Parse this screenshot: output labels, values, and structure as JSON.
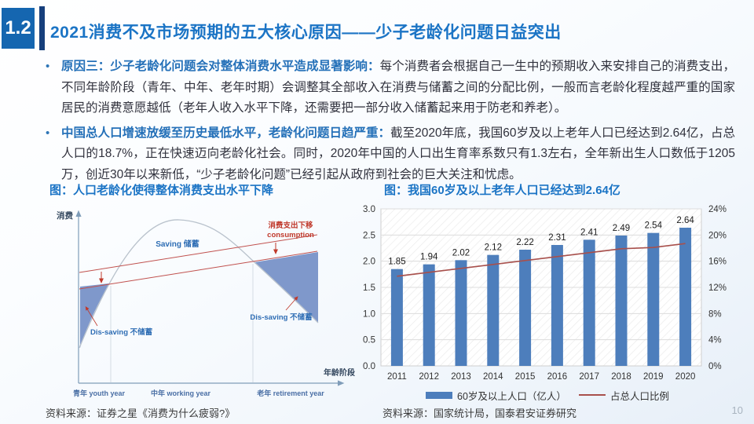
{
  "header": {
    "section": "1.2",
    "title": "2021消费不及市场预期的五大核心原因——少子老龄化问题日益突出"
  },
  "bullets": [
    {
      "lead": "原因三：少子老龄化问题会对整体消费水平造成显著影响：",
      "body": "每个消费者会根据自己一生中的预期收入来安排自己的消费支出，不同年龄阶段（青年、中年、老年时期）会调整其全部收入在消费与储蓄之间的分配比例，一般而言老龄化程度越严重的国家居民的消费意愿越低（老年人收入水平下降，还需要把一部分收入储蓄起来用于防老和养老）。"
    },
    {
      "lead": "中国总人口增速放缓至历史最低水平，老龄化问题日趋严重：",
      "body": "截至2020年底，我国60岁及以上老年人口已经达到2.64亿，占总人口的18.7%，正在快速迈向老龄化社会。同时，2020年中国的人口出生育率系数只有1.3左右，全年新出生人口数低于1205万，创近30年以来新低，“少子老龄化问题”已经引起从政府到社会的巨大关注和忧虑。"
    }
  ],
  "figures": {
    "left": {
      "title": "图：人口老龄化使得整体消费支出水平下降",
      "source": "资料来源：证券之星《消费为什么疲弱?》",
      "labels": {
        "y_axis": "消费",
        "x_axis": "年龄阶段",
        "saving": "Saving 储蓄",
        "dissaving_left": "Dis-saving 不储蓄",
        "dissaving_right": "Dis-saving 不储蓄",
        "shift_cn": "消费支出下移",
        "shift_en": "consumption",
        "stage_youth": "青年 youth year",
        "stage_working": "中年 working year",
        "stage_retire": "老年 retirement year"
      }
    },
    "right": {
      "title": "图：我国60岁及以上老年人口已经达到2.64亿",
      "source": "资料来源：国家统计局，国泰君安证券研究"
    }
  },
  "chart_data": {
    "type": "bar",
    "title": "图：我国60岁及以上老年人口已经达到2.64亿",
    "categories": [
      "2011",
      "2012",
      "2013",
      "2014",
      "2015",
      "2016",
      "2017",
      "2018",
      "2019",
      "2020"
    ],
    "series": [
      {
        "name": "60岁及以上人口（亿人）",
        "type": "bar",
        "axis": "left",
        "color": "#4d7ebc",
        "values": [
          1.85,
          1.94,
          2.02,
          2.12,
          2.22,
          2.31,
          2.41,
          2.49,
          2.54,
          2.64
        ],
        "data_labels": [
          "1.85",
          "1.94",
          "2.02",
          "2.12",
          "2.22",
          "2.31",
          "2.41",
          "2.49",
          "2.54",
          "2.64"
        ]
      },
      {
        "name": "占总人口比例",
        "type": "line",
        "axis": "right",
        "color": "#a8504c",
        "values": [
          13.7,
          14.3,
          14.9,
          15.5,
          16.1,
          16.7,
          17.3,
          17.9,
          18.1,
          18.7
        ]
      }
    ],
    "left_axis": {
      "min": 0,
      "max": 3,
      "labels": [
        "0.0",
        "0.5",
        "1.0",
        "1.5",
        "2.0",
        "2.5",
        "3.0"
      ]
    },
    "right_axis": {
      "min": 0,
      "max": 24,
      "labels": [
        "0%",
        "4%",
        "8%",
        "12%",
        "16%",
        "20%",
        "24%"
      ]
    },
    "grid": true,
    "legend_position": "bottom"
  },
  "colors": {
    "accent_blue": "#1566b0",
    "title_blue": "#1b74c5",
    "lead_blue": "#2470b8",
    "bar_blue": "#4d7ebc",
    "line_red": "#a8504c",
    "diagram_area_blue": "#7f98cb",
    "diagram_red": "#c0392b"
  },
  "footer": {
    "page_number": "10"
  }
}
